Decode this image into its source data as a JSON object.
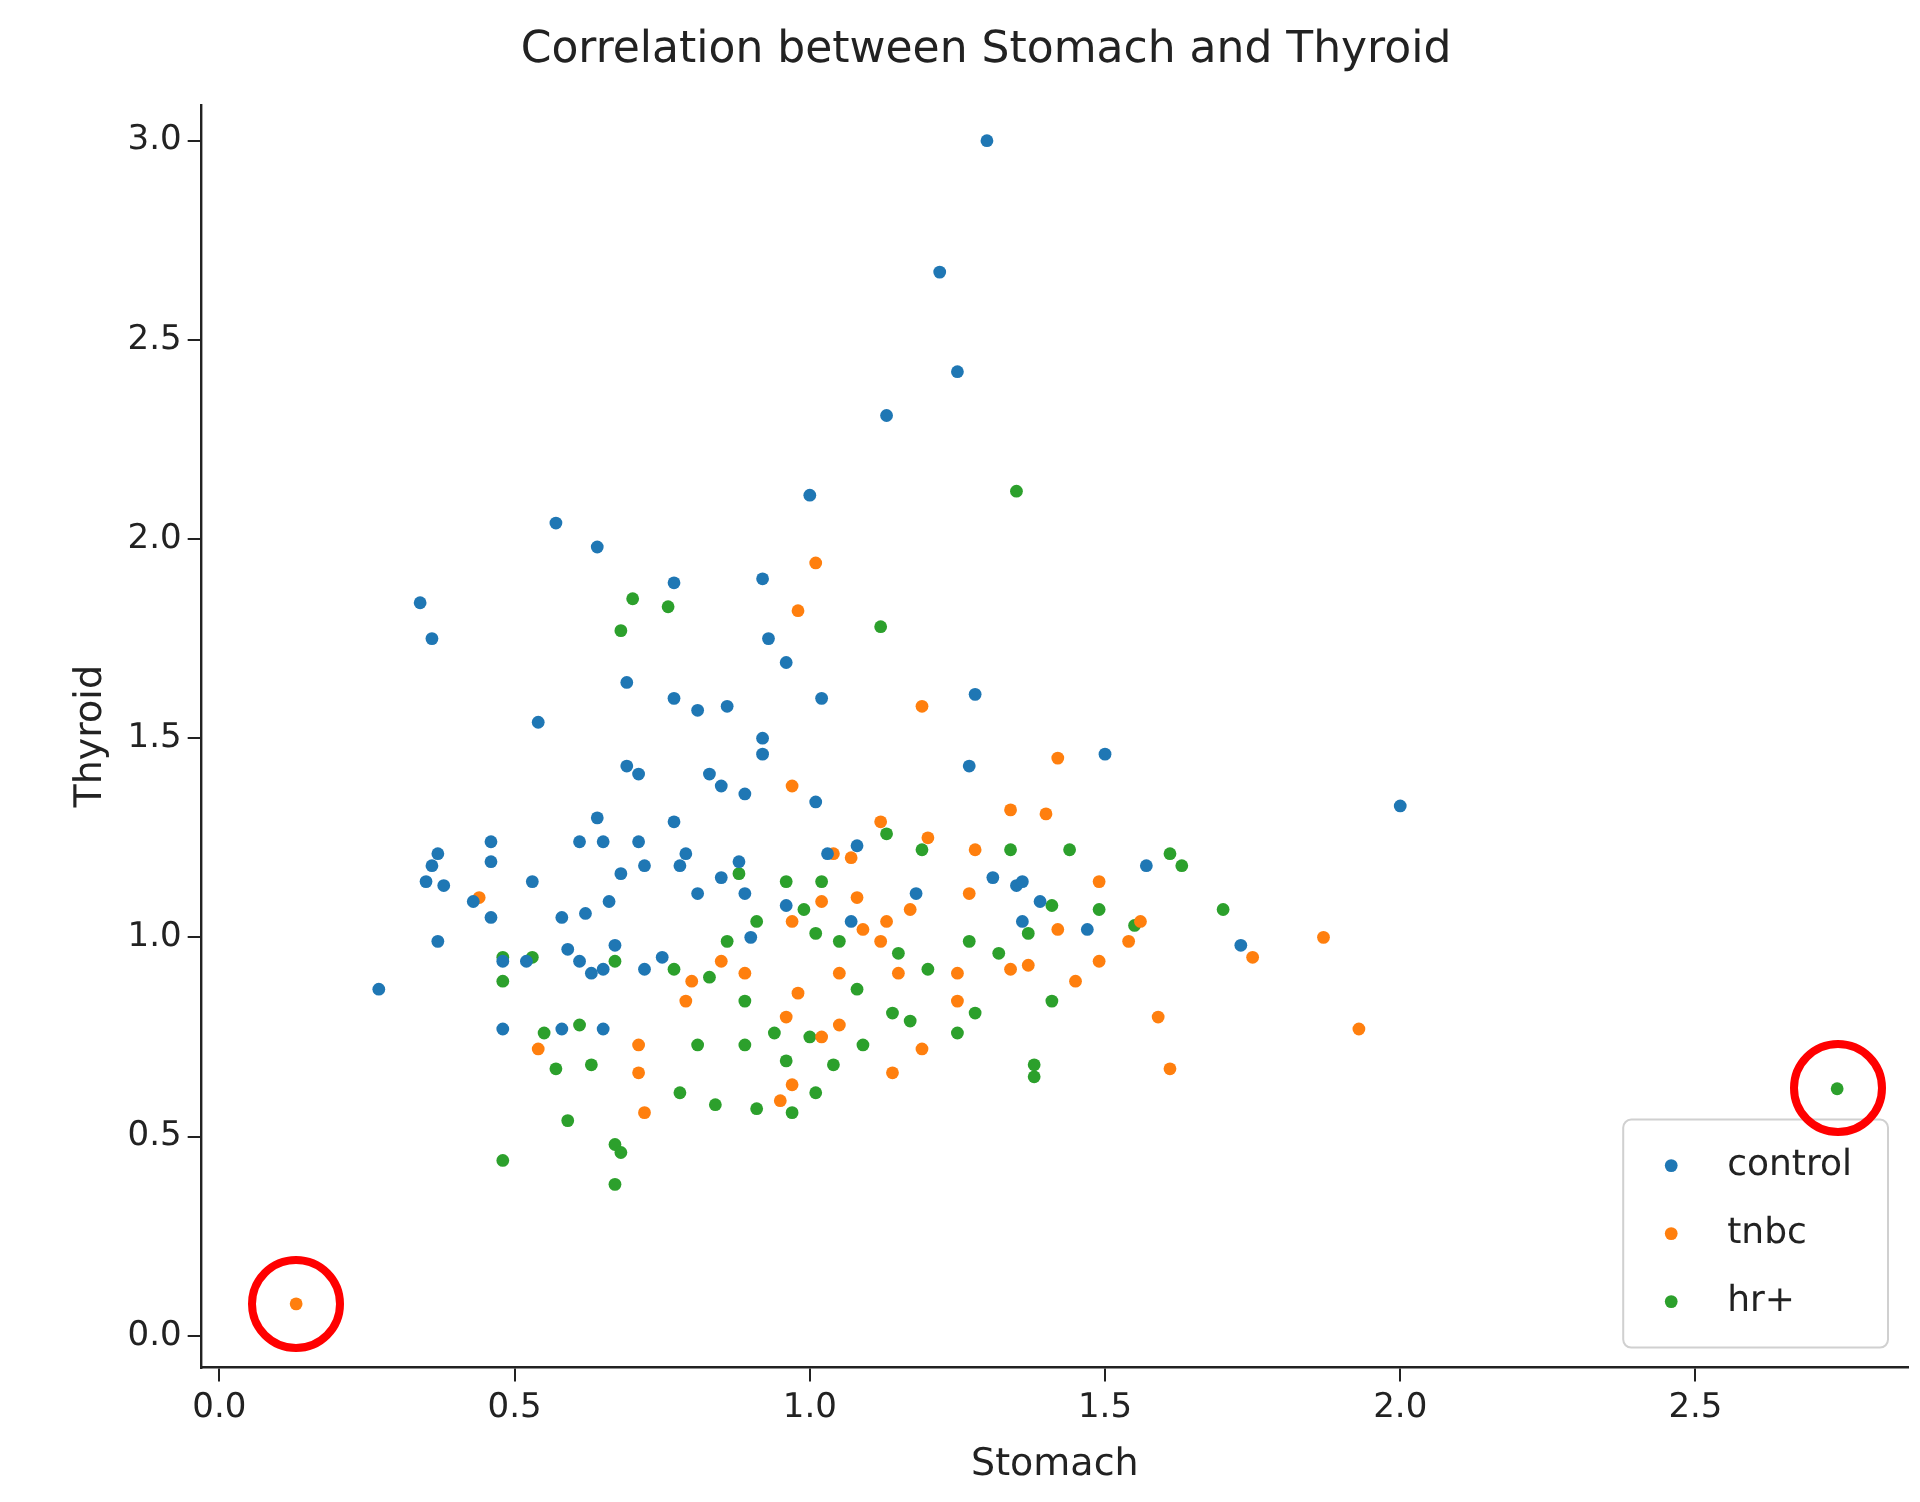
{
  "chart_data": {
    "type": "scatter",
    "title": "Correlation between Stomach and Thyroid",
    "xlabel": "Stomach",
    "ylabel": "Thyroid",
    "xlim": [
      -0.03,
      2.86
    ],
    "ylim": [
      -0.08,
      3.09
    ],
    "xticks": [
      {
        "value": 0,
        "label": "0.0"
      },
      {
        "value": 0.5,
        "label": "0.5"
      },
      {
        "value": 1,
        "label": "1.0"
      },
      {
        "value": 1.5,
        "label": "1.5"
      },
      {
        "value": 2,
        "label": "2.0"
      },
      {
        "value": 2.5,
        "label": "2.5"
      }
    ],
    "yticks": [
      {
        "value": 0,
        "label": "0.0"
      },
      {
        "value": 0.5,
        "label": "0.5"
      },
      {
        "value": 1,
        "label": "1.0"
      },
      {
        "value": 1.5,
        "label": "1.5"
      },
      {
        "value": 2,
        "label": "2.0"
      },
      {
        "value": 2.5,
        "label": "2.5"
      },
      {
        "value": 3,
        "label": "3.0"
      }
    ],
    "grid": false,
    "legend": "bottom right",
    "marker": "circle",
    "series": [
      {
        "name": "control",
        "color": "#1f77b4",
        "x": [
          1.3,
          1.22,
          1.25,
          1.13,
          1.0,
          0.57,
          0.64,
          0.34,
          0.36,
          0.77,
          0.92,
          0.93,
          0.96,
          0.54,
          0.69,
          0.77,
          0.81,
          0.86,
          0.92,
          0.92,
          1.02,
          1.28,
          0.69,
          0.71,
          0.83,
          0.85,
          0.89,
          1.01,
          1.27,
          1.5,
          2.0,
          0.64,
          0.65,
          0.61,
          0.71,
          0.77,
          0.79,
          0.46,
          0.37,
          0.36,
          0.38,
          0.35,
          0.46,
          0.43,
          0.46,
          0.53,
          0.58,
          0.62,
          0.66,
          0.68,
          0.72,
          0.78,
          0.81,
          0.85,
          0.88,
          0.89,
          0.37,
          0.27,
          0.48,
          0.52,
          0.59,
          0.61,
          0.65,
          0.67,
          0.75,
          0.72,
          0.63,
          0.48,
          0.58,
          0.65,
          0.96,
          0.9,
          1.31,
          1.35,
          1.36,
          1.47,
          1.36,
          1.39,
          1.57,
          1.73,
          1.18,
          1.03,
          1.08,
          1.07
        ],
        "values": [
          3.0,
          2.67,
          2.42,
          2.31,
          2.11,
          2.04,
          1.98,
          1.84,
          1.75,
          1.89,
          1.9,
          1.75,
          1.69,
          1.54,
          1.64,
          1.6,
          1.57,
          1.58,
          1.5,
          1.46,
          1.6,
          1.61,
          1.43,
          1.41,
          1.41,
          1.38,
          1.36,
          1.34,
          1.43,
          1.46,
          1.33,
          1.3,
          1.24,
          1.24,
          1.24,
          1.29,
          1.21,
          1.24,
          1.21,
          1.18,
          1.13,
          1.14,
          1.19,
          1.09,
          1.05,
          1.14,
          1.05,
          1.06,
          1.09,
          1.16,
          1.18,
          1.18,
          1.11,
          1.15,
          1.19,
          1.11,
          0.99,
          0.87,
          0.94,
          0.94,
          0.97,
          0.94,
          0.92,
          0.98,
          0.95,
          0.92,
          0.91,
          0.77,
          0.77,
          0.77,
          1.08,
          1.0,
          1.15,
          1.13,
          1.04,
          1.02,
          1.14,
          1.09,
          1.18,
          0.98,
          1.11,
          1.21,
          1.23,
          1.04
        ]
      },
      {
        "name": "tnbc",
        "color": "#ff7f0e",
        "x": [
          0.13,
          0.98,
          1.01,
          1.19,
          0.97,
          1.42,
          1.34,
          1.12,
          1.2,
          1.04,
          1.07,
          1.49,
          1.56,
          1.87,
          1.75,
          1.54,
          1.42,
          1.49,
          1.45,
          1.59,
          1.61,
          1.93,
          1.37,
          1.25,
          1.25,
          1.15,
          1.12,
          1.09,
          1.13,
          1.17,
          1.08,
          1.02,
          0.97,
          1.05,
          0.98,
          0.96,
          1.02,
          1.05,
          0.89,
          0.85,
          0.79,
          0.8,
          0.71,
          0.71,
          0.72,
          0.54,
          0.44,
          0.95,
          0.97,
          1.14,
          1.19,
          1.34,
          1.27,
          1.28,
          1.4
        ],
        "values": [
          0.08,
          1.82,
          1.94,
          1.58,
          1.38,
          1.45,
          1.32,
          1.29,
          1.25,
          1.21,
          1.2,
          1.14,
          1.04,
          1.0,
          0.95,
          0.99,
          1.02,
          0.94,
          0.89,
          0.8,
          0.67,
          0.77,
          0.93,
          0.91,
          0.84,
          0.91,
          0.99,
          1.02,
          1.04,
          1.07,
          1.1,
          1.09,
          1.04,
          0.91,
          0.86,
          0.8,
          0.75,
          0.78,
          0.91,
          0.94,
          0.84,
          0.89,
          0.73,
          0.66,
          0.56,
          0.72,
          1.1,
          0.59,
          0.63,
          0.66,
          0.72,
          0.92,
          1.11,
          1.22,
          1.31
        ]
      },
      {
        "name": "hr+",
        "color": "#2ca02c",
        "x": [
          2.74,
          1.35,
          1.12,
          0.7,
          0.68,
          0.76,
          1.13,
          1.19,
          1.34,
          1.61,
          1.63,
          1.44,
          1.41,
          1.49,
          1.55,
          1.7,
          0.96,
          1.02,
          0.99,
          0.91,
          0.86,
          0.77,
          0.67,
          0.48,
          0.48,
          0.53,
          0.55,
          0.61,
          0.63,
          0.57,
          0.59,
          0.48,
          0.67,
          0.68,
          0.67,
          0.78,
          0.84,
          0.91,
          0.97,
          1.01,
          0.96,
          0.94,
          1.0,
          1.04,
          1.09,
          1.14,
          1.17,
          1.25,
          1.28,
          1.38,
          1.38,
          1.41,
          1.37,
          1.2,
          1.15,
          1.08,
          1.05,
          1.01,
          0.89,
          0.83,
          0.89,
          0.81,
          0.88,
          1.27,
          1.32
        ],
        "values": [
          0.62,
          2.12,
          1.78,
          1.85,
          1.77,
          1.83,
          1.26,
          1.22,
          1.22,
          1.21,
          1.18,
          1.22,
          1.08,
          1.07,
          1.03,
          1.07,
          1.14,
          1.14,
          1.07,
          1.04,
          0.99,
          0.92,
          0.94,
          0.95,
          0.89,
          0.95,
          0.76,
          0.78,
          0.68,
          0.67,
          0.54,
          0.44,
          0.48,
          0.46,
          0.38,
          0.61,
          0.58,
          0.57,
          0.56,
          0.61,
          0.69,
          0.76,
          0.75,
          0.68,
          0.73,
          0.81,
          0.79,
          0.76,
          0.81,
          0.68,
          0.65,
          0.84,
          1.01,
          0.92,
          0.96,
          0.87,
          0.99,
          1.01,
          0.84,
          0.9,
          0.73,
          0.73,
          1.16,
          0.99,
          0.96
        ]
      }
    ]
  }
}
